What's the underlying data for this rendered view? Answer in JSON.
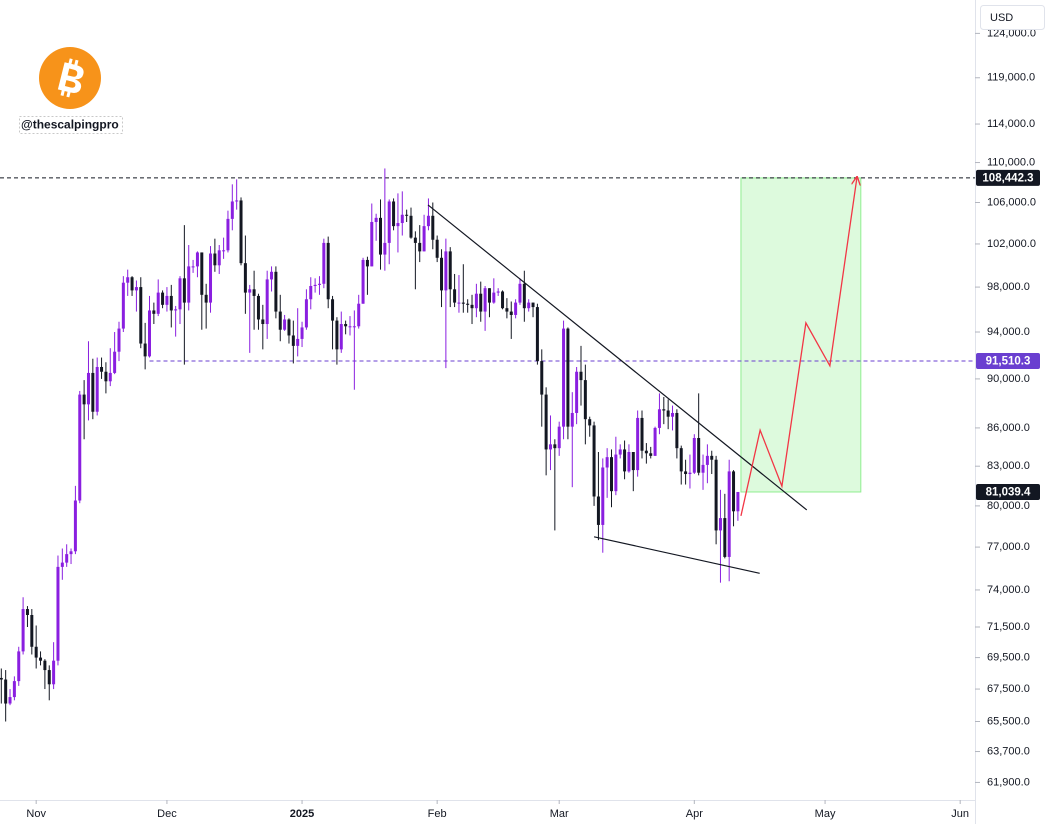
{
  "chart_data": {
    "type": "candlestick",
    "handle": "@thescalpingpro",
    "currency": "USD",
    "log_scale": true,
    "up_color": "#8a1fe0",
    "down_color": "#131722",
    "xlim": [
      -0.3,
      223.4
    ],
    "xticks": [
      {
        "value": 8,
        "label": "Nov"
      },
      {
        "value": 38,
        "label": "Dec"
      },
      {
        "value": 69,
        "label": "2025"
      },
      {
        "value": 100,
        "label": "Feb"
      },
      {
        "value": 128,
        "label": "Mar"
      },
      {
        "value": 159,
        "label": "Apr"
      },
      {
        "value": 189,
        "label": "May"
      },
      {
        "value": 220,
        "label": "Jun"
      }
    ],
    "ylim": [
      60900,
      127900
    ],
    "yticks": [
      {
        "value": 124000,
        "label": "124,000.0"
      },
      {
        "value": 119000,
        "label": "119,000.0"
      },
      {
        "value": 114000,
        "label": "114,000.0"
      },
      {
        "value": 110000,
        "label": "110,000.0"
      },
      {
        "value": 106000,
        "label": "106,000.0"
      },
      {
        "value": 102000,
        "label": "102,000.0"
      },
      {
        "value": 98000,
        "label": "98,000.0"
      },
      {
        "value": 94000,
        "label": "94,000.0"
      },
      {
        "value": 90000,
        "label": "90,000.0"
      },
      {
        "value": 86000,
        "label": "86,000.0"
      },
      {
        "value": 83000,
        "label": "83,000.0"
      },
      {
        "value": 80000,
        "label": "80,000.0"
      },
      {
        "value": 77000,
        "label": "77,000.0"
      },
      {
        "value": 74000,
        "label": "74,000.0"
      },
      {
        "value": 71500,
        "label": "71,500.0"
      },
      {
        "value": 69500,
        "label": "69,500.0"
      },
      {
        "value": 67500,
        "label": "67,500.0"
      },
      {
        "value": 65500,
        "label": "65,500.0"
      },
      {
        "value": 63700,
        "label": "63,700.0"
      },
      {
        "value": 61900,
        "label": "61,900.0"
      }
    ],
    "price_lines": [
      {
        "value": 108442.3,
        "label": "108,442.3",
        "color": "#131722",
        "from": -0.3
      },
      {
        "value": 91510.3,
        "label": "91,510.3",
        "color": "#6a3fd0",
        "from": 34
      }
    ],
    "last_price": {
      "value": 81039.4,
      "label": "81,039.4",
      "color": "#131722"
    },
    "trendlines": [
      {
        "color": "#131722",
        "points": [
          [
            97.9,
            105760
          ],
          [
            184.8,
            79700
          ]
        ]
      },
      {
        "color": "#131722",
        "points": [
          [
            136,
            77740
          ],
          [
            174,
            75150
          ]
        ]
      }
    ],
    "target_box": {
      "x": [
        169.7,
        197.2
      ],
      "y": [
        81039.4,
        108442.3
      ],
      "color": "#90ee90"
    },
    "projection": {
      "color": "#f23645",
      "points": [
        [
          169.7,
          79260
        ],
        [
          174.1,
          85820
        ],
        [
          179.1,
          81470
        ],
        [
          184.6,
          94800
        ],
        [
          190.1,
          91100
        ],
        [
          196.3,
          108442.3
        ]
      ]
    },
    "candles": [
      [
        68200,
        68800,
        66600,
        68100
      ],
      [
        68100,
        68700,
        65500,
        66600
      ],
      [
        66600,
        67500,
        66500,
        67000
      ],
      [
        67000,
        68300,
        66800,
        68000
      ],
      [
        68000,
        70200,
        67700,
        69900
      ],
      [
        69900,
        73500,
        69700,
        72700
      ],
      [
        72700,
        72900,
        71500,
        72300
      ],
      [
        72300,
        72700,
        69700,
        70200
      ],
      [
        70200,
        71600,
        68800,
        69500
      ],
      [
        69500,
        69900,
        69000,
        69300
      ],
      [
        69300,
        69400,
        67500,
        68700
      ],
      [
        68700,
        69000,
        66800,
        67800
      ],
      [
        67800,
        70500,
        67500,
        69300
      ],
      [
        69300,
        76400,
        69000,
        75600
      ],
      [
        75600,
        76900,
        74700,
        75900
      ],
      [
        75900,
        77200,
        75600,
        76500
      ],
      [
        76500,
        76900,
        75800,
        76700
      ],
      [
        76700,
        81500,
        76500,
        80400
      ],
      [
        80400,
        89000,
        80200,
        88700
      ],
      [
        88700,
        89900,
        85100,
        87900
      ],
      [
        87900,
        93200,
        86600,
        90500
      ],
      [
        90500,
        91700,
        86700,
        87300
      ],
      [
        87300,
        91800,
        87000,
        91000
      ],
      [
        91000,
        91800,
        90000,
        90600
      ],
      [
        90600,
        91400,
        88800,
        89800
      ],
      [
        89800,
        92600,
        89400,
        90500
      ],
      [
        90500,
        94000,
        90400,
        92300
      ],
      [
        92300,
        94900,
        91500,
        94300
      ],
      [
        94300,
        99000,
        94000,
        98400
      ],
      [
        98400,
        99600,
        97200,
        98900
      ],
      [
        98900,
        99000,
        97200,
        97700
      ],
      [
        97700,
        98600,
        95800,
        98000
      ],
      [
        98000,
        98900,
        92600,
        93000
      ],
      [
        93000,
        94800,
        90800,
        91900
      ],
      [
        91900,
        97200,
        91800,
        95900
      ],
      [
        95900,
        96600,
        94700,
        95600
      ],
      [
        95600,
        98700,
        95400,
        97500
      ],
      [
        97500,
        97700,
        96100,
        96400
      ],
      [
        96400,
        98000,
        95800,
        97200
      ],
      [
        97200,
        98200,
        94400,
        95900
      ],
      [
        95900,
        96300,
        93600,
        96000
      ],
      [
        96000,
        99000,
        94700,
        98800
      ],
      [
        98800,
        103800,
        91200,
        96600
      ],
      [
        96600,
        101900,
        95900,
        99900
      ],
      [
        99900,
        100500,
        99300,
        99900
      ],
      [
        99900,
        101300,
        98900,
        101200
      ],
      [
        101200,
        101200,
        94200,
        97300
      ],
      [
        97300,
        98300,
        94300,
        96600
      ],
      [
        96600,
        101800,
        95700,
        101100
      ],
      [
        101100,
        102500,
        99400,
        100000
      ],
      [
        100000,
        101900,
        99200,
        101400
      ],
      [
        101400,
        102600,
        100600,
        101400
      ],
      [
        101400,
        105200,
        101200,
        104400
      ],
      [
        104400,
        107800,
        103300,
        106100
      ],
      [
        106100,
        108300,
        105300,
        106200
      ],
      [
        106200,
        106500,
        100000,
        100200
      ],
      [
        100200,
        102800,
        95600,
        97500
      ],
      [
        97500,
        98200,
        92200,
        97800
      ],
      [
        97800,
        99500,
        94200,
        97200
      ],
      [
        97200,
        97400,
        94200,
        95100
      ],
      [
        95100,
        96400,
        92500,
        94700
      ],
      [
        94700,
        99500,
        93400,
        98700
      ],
      [
        98700,
        99900,
        97600,
        99400
      ],
      [
        99400,
        99900,
        95200,
        95800
      ],
      [
        95800,
        97300,
        93200,
        94200
      ],
      [
        94200,
        95500,
        94100,
        95100
      ],
      [
        95100,
        95200,
        93000,
        93700
      ],
      [
        93700,
        95000,
        91300,
        92800
      ],
      [
        92800,
        96100,
        91900,
        93400
      ],
      [
        93400,
        94900,
        92700,
        94400
      ],
      [
        94400,
        97800,
        94200,
        96900
      ],
      [
        96900,
        98900,
        96000,
        98100
      ],
      [
        98100,
        98800,
        97500,
        98200
      ],
      [
        98200,
        99000,
        97300,
        98300
      ],
      [
        98300,
        102500,
        97900,
        102100
      ],
      [
        102100,
        102700,
        96100,
        96900
      ],
      [
        96900,
        97200,
        92500,
        95000
      ],
      [
        95000,
        95300,
        91200,
        92500
      ],
      [
        92500,
        95800,
        92200,
        94700
      ],
      [
        94700,
        95000,
        93800,
        94500
      ],
      [
        94500,
        95400,
        93700,
        94500
      ],
      [
        94500,
        95900,
        89100,
        94500
      ],
      [
        94500,
        97300,
        94300,
        96500
      ],
      [
        96500,
        100700,
        96500,
        100500
      ],
      [
        100500,
        100800,
        97300,
        99900
      ],
      [
        99900,
        105900,
        99900,
        104100
      ],
      [
        104100,
        104900,
        102300,
        104500
      ],
      [
        104500,
        106300,
        99600,
        101000
      ],
      [
        101000,
        109400,
        99500,
        102100
      ],
      [
        102100,
        106300,
        100100,
        106100
      ],
      [
        106100,
        106400,
        103300,
        103700
      ],
      [
        103700,
        106900,
        101200,
        104000
      ],
      [
        104000,
        107100,
        102800,
        104800
      ],
      [
        104800,
        105300,
        104100,
        104700
      ],
      [
        104700,
        105500,
        102500,
        102600
      ],
      [
        102600,
        103200,
        97800,
        102100
      ],
      [
        102100,
        103800,
        100300,
        101300
      ],
      [
        101300,
        104800,
        101300,
        103700
      ],
      [
        103700,
        106400,
        103300,
        104700
      ],
      [
        104700,
        106000,
        101500,
        102400
      ],
      [
        102400,
        102800,
        100300,
        100700
      ],
      [
        100700,
        101500,
        96200,
        97700
      ],
      [
        97700,
        102500,
        90900,
        101300
      ],
      [
        101300,
        101700,
        96200,
        97800
      ],
      [
        97800,
        99200,
        96200,
        96600
      ],
      [
        96600,
        99100,
        95700,
        96600
      ],
      [
        96600,
        100100,
        95700,
        96500
      ],
      [
        96500,
        96900,
        95700,
        96400
      ],
      [
        96400,
        97300,
        94700,
        96100
      ],
      [
        96100,
        98300,
        95300,
        97400
      ],
      [
        97400,
        98500,
        94900,
        95800
      ],
      [
        95800,
        98100,
        94100,
        97900
      ],
      [
        97900,
        97900,
        95300,
        96600
      ],
      [
        96600,
        98800,
        96500,
        97500
      ],
      [
        97500,
        97900,
        97200,
        97600
      ],
      [
        97600,
        97700,
        96000,
        96100
      ],
      [
        96100,
        97000,
        95200,
        95800
      ],
      [
        95800,
        96700,
        93400,
        95500
      ],
      [
        95500,
        96900,
        95200,
        96600
      ],
      [
        96600,
        98800,
        96400,
        98300
      ],
      [
        98300,
        99500,
        94900,
        96100
      ],
      [
        96100,
        96900,
        95800,
        96600
      ],
      [
        96600,
        96600,
        95300,
        96200
      ],
      [
        96200,
        96500,
        91200,
        91500
      ],
      [
        91500,
        92500,
        86100,
        88700
      ],
      [
        88700,
        89300,
        82300,
        84300
      ],
      [
        84300,
        87000,
        82700,
        84700
      ],
      [
        84700,
        85100,
        78200,
        84400
      ],
      [
        84400,
        86500,
        83800,
        86100
      ],
      [
        86100,
        95000,
        85100,
        94300
      ],
      [
        94300,
        94400,
        85100,
        86100
      ],
      [
        86100,
        88900,
        81400,
        87200
      ],
      [
        87200,
        91000,
        86300,
        90600
      ],
      [
        90600,
        92800,
        87800,
        89900
      ],
      [
        89900,
        91200,
        84700,
        86700
      ],
      [
        86700,
        86900,
        85300,
        86200
      ],
      [
        86200,
        86500,
        80000,
        80700
      ],
      [
        80700,
        84100,
        77500,
        78600
      ],
      [
        78600,
        83600,
        76600,
        82900
      ],
      [
        82900,
        84400,
        80600,
        83700
      ],
      [
        83700,
        84300,
        79900,
        81100
      ],
      [
        81100,
        85300,
        80800,
        83900
      ],
      [
        83900,
        84700,
        83600,
        84300
      ],
      [
        84300,
        85000,
        82000,
        82600
      ],
      [
        82600,
        84700,
        82500,
        84100
      ],
      [
        84100,
        84100,
        81100,
        82700
      ],
      [
        82700,
        87400,
        82200,
        86800
      ],
      [
        86800,
        87400,
        83600,
        84200
      ],
      [
        84200,
        84800,
        83200,
        84000
      ],
      [
        84000,
        84500,
        83600,
        83800
      ],
      [
        83800,
        86100,
        83800,
        86000
      ],
      [
        86000,
        88800,
        85500,
        87500
      ],
      [
        87500,
        88500,
        86300,
        87400
      ],
      [
        87400,
        88300,
        85900,
        86900
      ],
      [
        86900,
        87800,
        85800,
        87200
      ],
      [
        87200,
        87500,
        83600,
        84400
      ],
      [
        84400,
        84600,
        81600,
        82600
      ],
      [
        82600,
        83500,
        81600,
        82400
      ],
      [
        82400,
        83900,
        81300,
        82500
      ],
      [
        82500,
        85500,
        82400,
        85200
      ],
      [
        85200,
        88800,
        82300,
        82500
      ],
      [
        82500,
        83900,
        81200,
        83100
      ],
      [
        83100,
        84700,
        81700,
        83800
      ],
      [
        83800,
        84200,
        82400,
        83500
      ],
      [
        83500,
        83800,
        77200,
        78200
      ],
      [
        78200,
        81200,
        74500,
        79100
      ],
      [
        79100,
        80900,
        76200,
        76300
      ],
      [
        76300,
        83500,
        74600,
        82600
      ],
      [
        82600,
        82700,
        78500,
        79600
      ],
      [
        79600,
        81000,
        78900,
        81039.4
      ]
    ]
  }
}
